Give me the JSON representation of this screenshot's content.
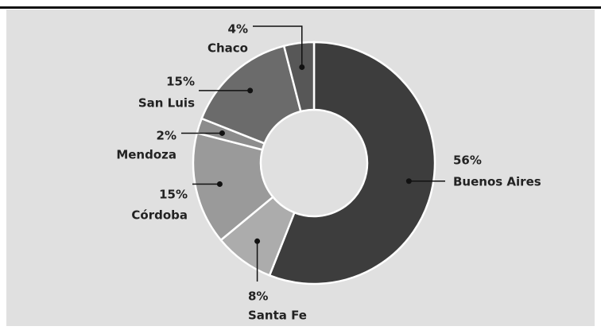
{
  "chart_data": {
    "type": "donut",
    "categories": [
      "Buenos Aires",
      "Santa Fe",
      "Córdoba",
      "Mendoza",
      "San Luis",
      "Chaco"
    ],
    "values": [
      56,
      8,
      15,
      2,
      15,
      4
    ],
    "value_labels": [
      "56%",
      "8%",
      "15%",
      "2%",
      "15%",
      "4%"
    ],
    "colors": [
      "#3d3d3d",
      "#acacac",
      "#9a9a9a",
      "#8c8c8c",
      "#6b6b6b",
      "#575757"
    ]
  }
}
